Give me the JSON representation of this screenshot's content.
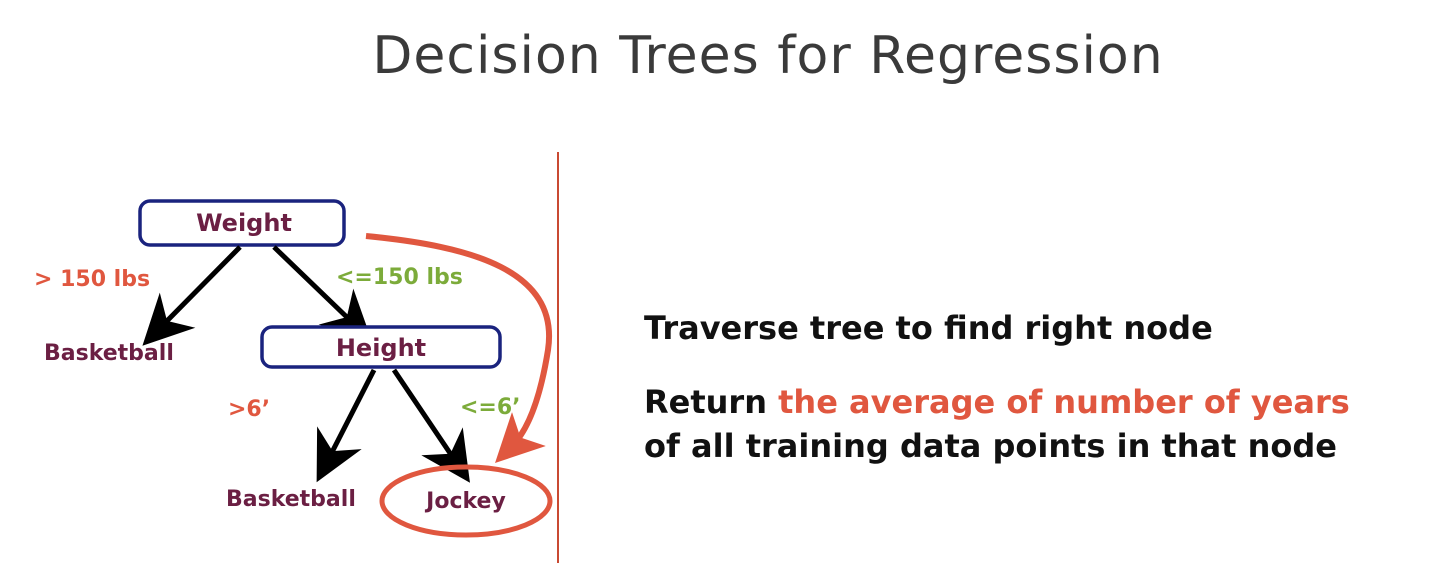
{
  "title": "Decision Trees for Regression",
  "tree": {
    "root": "Weight",
    "root_left_edge": "> 150 lbs",
    "root_right_edge": "<=150 lbs",
    "left_leaf": "Basketball",
    "inner_node": "Height",
    "inner_left_edge": ">6’",
    "inner_right_edge": "<=6’",
    "inner_left_leaf": "Basketball",
    "inner_right_leaf": "Jockey"
  },
  "explanation": {
    "line1": "Traverse tree to find right node",
    "line2_prefix": "Return ",
    "line2_highlight": "the average of number of years",
    "line3": "of all training data points in that node"
  },
  "colors": {
    "node_border": "#1a237e",
    "node_text": "#6b1f43",
    "edge_left": "#e0573f",
    "edge_right": "#7cab3a",
    "accent": "#e0573f",
    "divider": "#c94a32"
  }
}
